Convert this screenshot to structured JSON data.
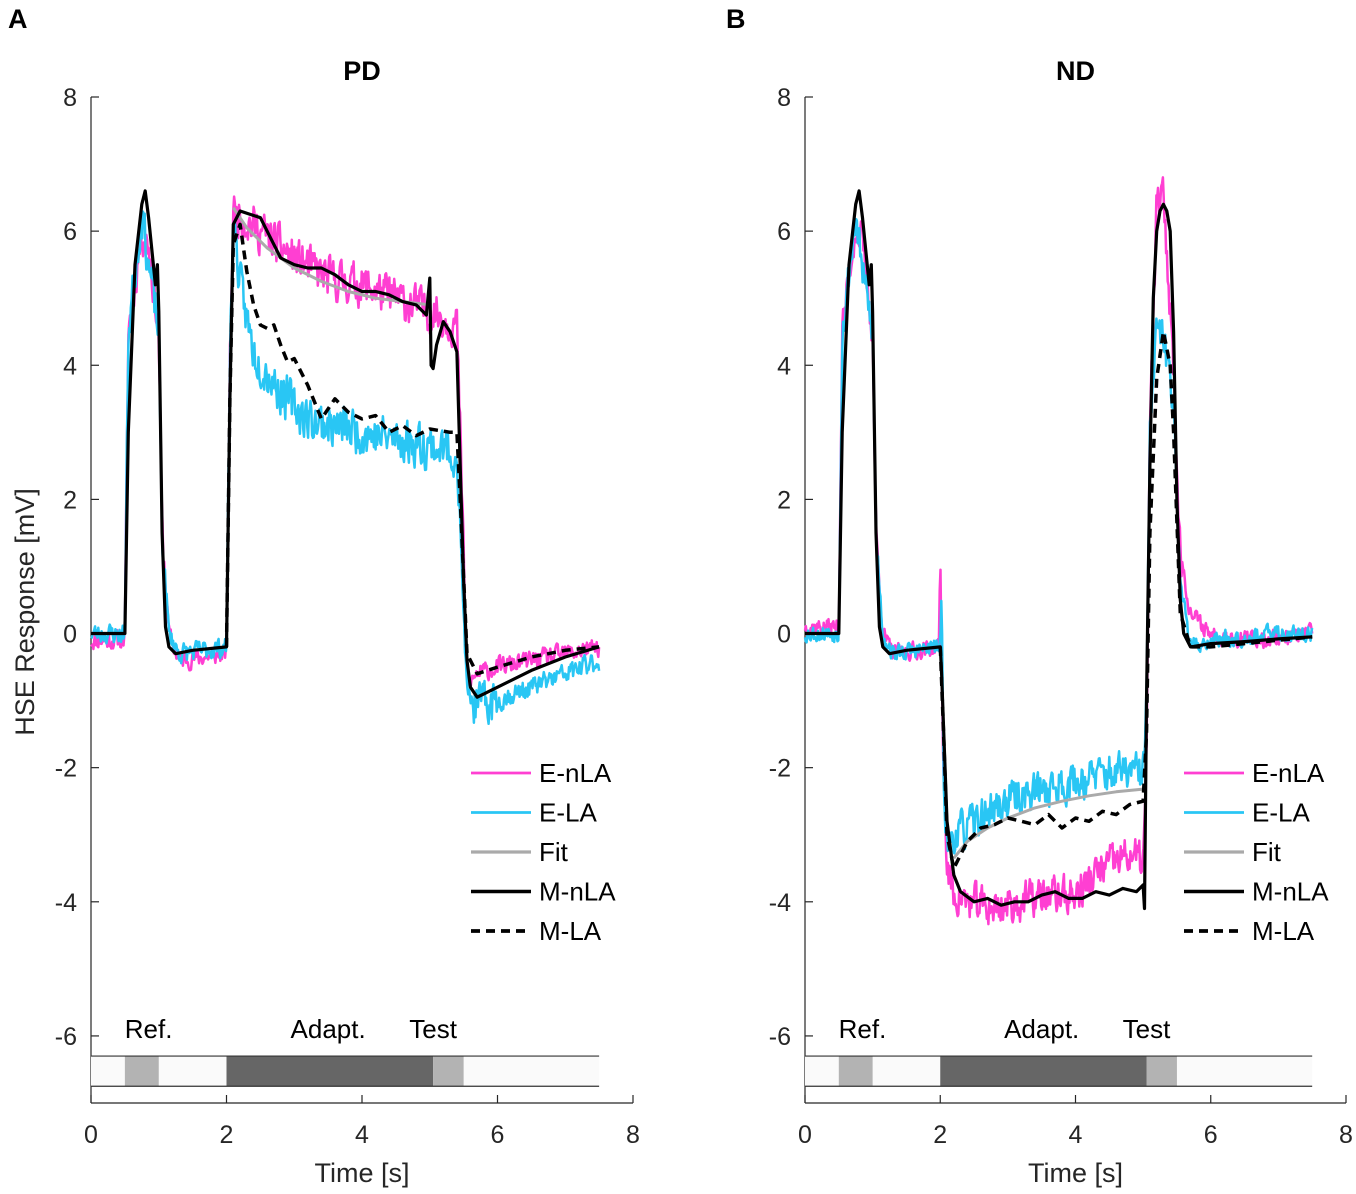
{
  "figure": {
    "panels": [
      {
        "letter": "A",
        "title": "PD"
      },
      {
        "letter": "B",
        "title": "ND"
      }
    ]
  },
  "chart_data": [
    {
      "type": "line",
      "letter": "A",
      "title": "PD",
      "xlabel": "Time [s]",
      "ylabel": "HSE Response [mV]",
      "xlim": [
        0,
        8
      ],
      "ylim": [
        -7,
        8
      ],
      "xticks": [
        0,
        2,
        4,
        6,
        8
      ],
      "yticks": [
        -6,
        -4,
        -2,
        0,
        2,
        4,
        6,
        8
      ],
      "xtick_labels": [
        "0",
        "2",
        "4",
        "6",
        "8"
      ],
      "ytick_labels": [
        "-6",
        "-4",
        "-2",
        "0",
        "2",
        "4",
        "6",
        "8"
      ],
      "legend_position": "lower-right",
      "stimulus": {
        "labels": {
          "ref": "Ref.",
          "adapt": "Adapt.",
          "test": "Test"
        },
        "segments": [
          {
            "name": "ref",
            "start": 0.5,
            "end": 1.0,
            "shade": "#b3b3b3"
          },
          {
            "name": "adapt",
            "start": 2.0,
            "end": 5.05,
            "shade": "#666666"
          },
          {
            "name": "test",
            "start": 5.05,
            "end": 5.5,
            "shade": "#b3b3b3"
          }
        ],
        "x_end": 7.5,
        "y_top": -6.3,
        "y_bottom": -6.75
      },
      "series": [
        {
          "name": "E-nLA",
          "color": "#ff3fd2",
          "style": "solid",
          "width": 2.5,
          "noise": 0.28,
          "seed": 11,
          "x": [
            0,
            0.5,
            0.55,
            0.75,
            0.85,
            1.0,
            1.05,
            1.15,
            1.3,
            2.0,
            2.05,
            2.1,
            2.5,
            3.0,
            3.5,
            4.0,
            4.5,
            5.0,
            5.05,
            5.4,
            5.45,
            5.55,
            5.7,
            6.0,
            6.5,
            7.0,
            7.5
          ],
          "y": [
            -0.1,
            -0.1,
            4.5,
            6.0,
            5.8,
            4.5,
            1.5,
            0,
            -0.4,
            -0.3,
            4.0,
            6.3,
            6.0,
            5.6,
            5.3,
            5.2,
            5.0,
            4.8,
            4.8,
            4.6,
            3.0,
            -0.8,
            -0.6,
            -0.5,
            -0.4,
            -0.3,
            -0.2
          ]
        },
        {
          "name": "E-LA",
          "color": "#29c6f4",
          "style": "solid",
          "width": 2.5,
          "noise": 0.3,
          "seed": 23,
          "x": [
            0,
            0.5,
            0.55,
            0.75,
            0.85,
            1.0,
            1.05,
            1.15,
            1.3,
            2.0,
            2.05,
            2.1,
            2.2,
            2.4,
            2.8,
            3.2,
            3.6,
            4.0,
            4.5,
            5.0,
            5.4,
            5.45,
            5.55,
            5.7,
            6.0,
            6.5,
            7.0,
            7.5
          ],
          "y": [
            0,
            0,
            4.5,
            6.3,
            5.5,
            4.5,
            1.5,
            0,
            -0.3,
            -0.2,
            4.0,
            6.2,
            5.2,
            4.2,
            3.6,
            3.2,
            3.1,
            3.0,
            2.9,
            2.8,
            2.7,
            1.5,
            -0.9,
            -1.1,
            -1.0,
            -0.8,
            -0.6,
            -0.4
          ]
        },
        {
          "name": "Fit",
          "color": "#aaaaaa",
          "style": "solid",
          "width": 3,
          "noise": 0,
          "x": [
            2.1,
            2.3,
            2.6,
            3.0,
            3.4,
            3.8,
            4.2,
            4.6,
            5.0
          ],
          "y": [
            6.35,
            6.05,
            5.75,
            5.45,
            5.25,
            5.1,
            5.0,
            4.95,
            4.9
          ]
        },
        {
          "name": "M-nLA",
          "color": "#000000",
          "style": "solid",
          "width": 3.2,
          "noise": 0,
          "x": [
            0,
            0.5,
            0.55,
            0.65,
            0.75,
            0.8,
            0.85,
            0.95,
            0.98,
            1.0,
            1.05,
            1.1,
            1.15,
            1.25,
            1.5,
            2.0,
            2.05,
            2.1,
            2.2,
            2.35,
            2.5,
            2.65,
            2.8,
            3.0,
            3.2,
            3.4,
            3.6,
            3.8,
            4.0,
            4.2,
            4.4,
            4.6,
            4.8,
            4.95,
            5.0,
            5.02,
            5.05,
            5.1,
            5.2,
            5.3,
            5.4,
            5.45,
            5.5,
            5.55,
            5.6,
            5.7,
            6.0,
            6.5,
            7.0,
            7.5
          ],
          "y": [
            0,
            0,
            3.0,
            5.5,
            6.4,
            6.6,
            6.2,
            5.2,
            5.5,
            4.8,
            1.5,
            0.1,
            -0.2,
            -0.3,
            -0.25,
            -0.2,
            3.5,
            6.1,
            6.3,
            6.25,
            6.2,
            5.9,
            5.6,
            5.5,
            5.45,
            5.45,
            5.35,
            5.2,
            5.1,
            5.1,
            5.05,
            4.95,
            4.9,
            4.75,
            5.3,
            4.0,
            3.95,
            4.3,
            4.65,
            4.5,
            4.2,
            2.5,
            0.8,
            -0.4,
            -0.8,
            -0.95,
            -0.8,
            -0.55,
            -0.35,
            -0.2
          ]
        },
        {
          "name": "M-LA",
          "color": "#000000",
          "style": "dashed",
          "width": 3.5,
          "noise": 0,
          "x": [
            2.0,
            2.05,
            2.1,
            2.2,
            2.3,
            2.4,
            2.5,
            2.6,
            2.7,
            2.8,
            2.9,
            3.0,
            3.2,
            3.4,
            3.6,
            3.8,
            4.0,
            4.2,
            4.4,
            4.6,
            4.8,
            5.0,
            5.3,
            5.4,
            5.45,
            5.55,
            5.7,
            6.0,
            6.5,
            7.0,
            7.5
          ],
          "y": [
            -0.2,
            3.5,
            5.8,
            6.1,
            5.4,
            4.9,
            4.6,
            4.55,
            4.6,
            4.3,
            4.05,
            4.1,
            3.7,
            3.2,
            3.5,
            3.3,
            3.2,
            3.25,
            3.0,
            3.1,
            2.95,
            3.05,
            3.0,
            3.0,
            2.0,
            -0.3,
            -0.6,
            -0.5,
            -0.35,
            -0.25,
            -0.2
          ]
        }
      ]
    },
    {
      "type": "line",
      "letter": "B",
      "title": "ND",
      "xlabel": "Time [s]",
      "ylabel": "",
      "xlim": [
        0,
        8
      ],
      "ylim": [
        -7,
        8
      ],
      "xticks": [
        0,
        2,
        4,
        6,
        8
      ],
      "yticks": [
        -6,
        -4,
        -2,
        0,
        2,
        4,
        6,
        8
      ],
      "xtick_labels": [
        "0",
        "2",
        "4",
        "6",
        "8"
      ],
      "ytick_labels": [
        "-6",
        "-4",
        "-2",
        "0",
        "2",
        "4",
        "6",
        "8"
      ],
      "legend_position": "lower-right",
      "stimulus": {
        "labels": {
          "ref": "Ref.",
          "adapt": "Adapt.",
          "test": "Test"
        },
        "segments": [
          {
            "name": "ref",
            "start": 0.5,
            "end": 1.0,
            "shade": "#b3b3b3"
          },
          {
            "name": "adapt",
            "start": 2.0,
            "end": 5.05,
            "shade": "#666666"
          },
          {
            "name": "test",
            "start": 5.05,
            "end": 5.5,
            "shade": "#b3b3b3"
          }
        ],
        "x_end": 7.5,
        "y_top": -6.3,
        "y_bottom": -6.75
      },
      "series": [
        {
          "name": "E-nLA",
          "color": "#ff3fd2",
          "style": "solid",
          "width": 2.5,
          "noise": 0.26,
          "seed": 37,
          "x": [
            0,
            0.5,
            0.55,
            0.75,
            0.85,
            1.0,
            1.05,
            1.15,
            1.3,
            1.98,
            2.0,
            2.02,
            2.05,
            2.1,
            2.2,
            2.4,
            2.8,
            3.2,
            3.6,
            4.0,
            4.4,
            4.8,
            5.0,
            5.05,
            5.1,
            5.2,
            5.3,
            5.45,
            5.55,
            5.7,
            6.0,
            6.5,
            7.0,
            7.5
          ],
          "y": [
            0.1,
            0.1,
            4.5,
            6.1,
            5.8,
            4.5,
            1.5,
            0,
            -0.3,
            -0.2,
            1.3,
            -0.5,
            -2.0,
            -3.5,
            -3.9,
            -4.0,
            -4.1,
            -4.0,
            -3.9,
            -3.9,
            -3.5,
            -3.3,
            -3.4,
            -2.0,
            3.0,
            6.4,
            6.5,
            4.0,
            1.2,
            0.3,
            0.0,
            -0.1,
            -0.05,
            0.0
          ]
        },
        {
          "name": "E-LA",
          "color": "#29c6f4",
          "style": "solid",
          "width": 2.5,
          "noise": 0.26,
          "seed": 53,
          "x": [
            0,
            0.5,
            0.55,
            0.75,
            0.85,
            1.0,
            1.05,
            1.15,
            1.3,
            2.0,
            2.02,
            2.05,
            2.1,
            2.2,
            2.4,
            2.8,
            3.2,
            3.6,
            4.0,
            4.4,
            4.8,
            5.0,
            5.05,
            5.1,
            5.2,
            5.3,
            5.45,
            5.55,
            5.7,
            6.0,
            6.5,
            7.0,
            7.5
          ],
          "y": [
            0,
            0,
            4.5,
            6.2,
            5.4,
            4.5,
            1.5,
            0,
            -0.3,
            -0.2,
            0.5,
            -2.0,
            -3.2,
            -3.0,
            -2.9,
            -2.6,
            -2.4,
            -2.3,
            -2.2,
            -2.1,
            -2.05,
            -2.1,
            -1.0,
            3.0,
            4.5,
            4.4,
            3.5,
            0.8,
            -0.2,
            -0.1,
            -0.05,
            0.0,
            0.0
          ]
        },
        {
          "name": "Fit",
          "color": "#aaaaaa",
          "style": "solid",
          "width": 3,
          "noise": 0,
          "x": [
            2.2,
            2.4,
            2.7,
            3.0,
            3.4,
            3.8,
            4.2,
            4.6,
            5.0
          ],
          "y": [
            -3.35,
            -3.1,
            -2.9,
            -2.75,
            -2.6,
            -2.5,
            -2.42,
            -2.36,
            -2.32
          ]
        },
        {
          "name": "M-nLA",
          "color": "#000000",
          "style": "solid",
          "width": 3.2,
          "noise": 0,
          "x": [
            0,
            0.5,
            0.55,
            0.65,
            0.75,
            0.8,
            0.85,
            0.95,
            0.98,
            1.0,
            1.05,
            1.1,
            1.15,
            1.25,
            1.5,
            2.0,
            2.02,
            2.1,
            2.2,
            2.3,
            2.5,
            2.7,
            2.9,
            3.1,
            3.3,
            3.5,
            3.7,
            3.9,
            4.1,
            4.3,
            4.5,
            4.7,
            4.9,
            5.0,
            5.02,
            5.05,
            5.1,
            5.15,
            5.2,
            5.25,
            5.3,
            5.35,
            5.4,
            5.45,
            5.5,
            5.55,
            5.6,
            5.7,
            6.0,
            6.5,
            7.0,
            7.5
          ],
          "y": [
            0,
            0,
            3.0,
            5.5,
            6.4,
            6.6,
            6.2,
            5.2,
            5.5,
            4.8,
            1.5,
            0.1,
            -0.2,
            -0.3,
            -0.25,
            -0.2,
            -0.6,
            -2.8,
            -3.6,
            -3.85,
            -4.0,
            -3.95,
            -4.05,
            -4.0,
            -4.0,
            -3.9,
            -3.85,
            -3.95,
            -3.95,
            -3.85,
            -3.9,
            -3.8,
            -3.85,
            -3.75,
            -4.1,
            -1.0,
            2.5,
            5.0,
            6.0,
            6.3,
            6.4,
            6.3,
            6.0,
            4.5,
            2.0,
            0.5,
            0.0,
            -0.2,
            -0.15,
            -0.12,
            -0.08,
            -0.05
          ]
        },
        {
          "name": "M-LA",
          "color": "#000000",
          "style": "dashed",
          "width": 3.5,
          "noise": 0,
          "x": [
            2.0,
            2.05,
            2.1,
            2.2,
            2.3,
            2.4,
            2.5,
            2.6,
            2.8,
            3.0,
            3.2,
            3.4,
            3.6,
            3.8,
            4.0,
            4.2,
            4.4,
            4.6,
            4.8,
            5.0,
            5.05,
            5.1,
            5.2,
            5.3,
            5.4,
            5.45,
            5.55,
            5.7,
            6.0,
            6.5,
            7.0,
            7.5
          ],
          "y": [
            -0.2,
            -1.5,
            -3.0,
            -3.5,
            -3.3,
            -3.1,
            -3.0,
            -2.9,
            -2.85,
            -2.75,
            -2.8,
            -2.85,
            -2.7,
            -2.9,
            -2.75,
            -2.8,
            -2.65,
            -2.7,
            -2.55,
            -2.5,
            -1.5,
            1.5,
            3.8,
            4.5,
            4.0,
            3.0,
            0.3,
            -0.2,
            -0.2,
            -0.15,
            -0.1,
            -0.05
          ]
        }
      ]
    }
  ]
}
